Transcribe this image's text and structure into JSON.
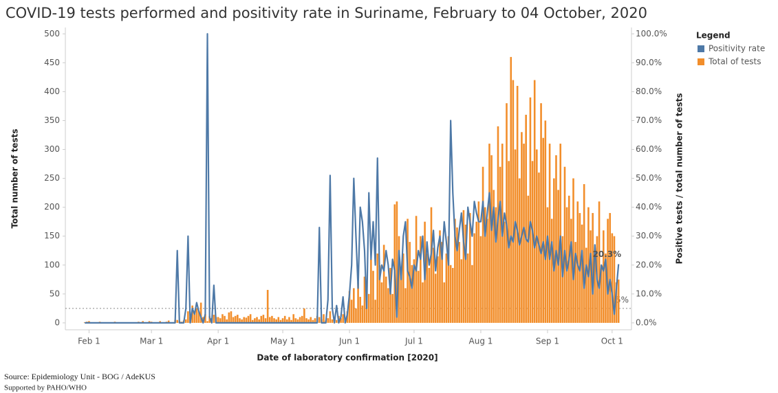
{
  "chart_data": {
    "type": "bar_line",
    "title": "COVID-19 tests performed and positivity rate in Suriname, February to 04 October, 2020",
    "x_label": "Date of laboratory confirmation [2020]",
    "y_label": "Total number of tests",
    "y2_label": "Positive tests / total number of tests",
    "legend_title": "Legend",
    "legend": "right",
    "source": [
      "Source: Epidemiology Unit - BOG / AdeKUS",
      "Supported by PAHO/WHO"
    ],
    "x": [
      "2020-01-30",
      "2020-01-31",
      "2020-02-01",
      "2020-02-02",
      "2020-02-03",
      "2020-02-04",
      "2020-02-05",
      "2020-02-06",
      "2020-02-07",
      "2020-02-08",
      "2020-02-09",
      "2020-02-10",
      "2020-02-11",
      "2020-02-12",
      "2020-02-13",
      "2020-02-14",
      "2020-02-15",
      "2020-02-16",
      "2020-02-17",
      "2020-02-18",
      "2020-02-19",
      "2020-02-20",
      "2020-02-21",
      "2020-02-22",
      "2020-02-23",
      "2020-02-24",
      "2020-02-25",
      "2020-02-26",
      "2020-02-27",
      "2020-02-28",
      "2020-02-29",
      "2020-03-01",
      "2020-03-02",
      "2020-03-03",
      "2020-03-04",
      "2020-03-05",
      "2020-03-06",
      "2020-03-07",
      "2020-03-08",
      "2020-03-09",
      "2020-03-10",
      "2020-03-11",
      "2020-03-12",
      "2020-03-13",
      "2020-03-14",
      "2020-03-15",
      "2020-03-16",
      "2020-03-17",
      "2020-03-18",
      "2020-03-19",
      "2020-03-20",
      "2020-03-21",
      "2020-03-22",
      "2020-03-23",
      "2020-03-24",
      "2020-03-25",
      "2020-03-26",
      "2020-03-27",
      "2020-03-28",
      "2020-03-29",
      "2020-03-30",
      "2020-03-31",
      "2020-04-01",
      "2020-04-02",
      "2020-04-03",
      "2020-04-04",
      "2020-04-05",
      "2020-04-06",
      "2020-04-07",
      "2020-04-08",
      "2020-04-09",
      "2020-04-10",
      "2020-04-11",
      "2020-04-12",
      "2020-04-13",
      "2020-04-14",
      "2020-04-15",
      "2020-04-16",
      "2020-04-17",
      "2020-04-18",
      "2020-04-19",
      "2020-04-20",
      "2020-04-21",
      "2020-04-22",
      "2020-04-23",
      "2020-04-24",
      "2020-04-25",
      "2020-04-26",
      "2020-04-27",
      "2020-04-28",
      "2020-04-29",
      "2020-04-30",
      "2020-05-01",
      "2020-05-02",
      "2020-05-03",
      "2020-05-04",
      "2020-05-05",
      "2020-05-06",
      "2020-05-07",
      "2020-05-08",
      "2020-05-09",
      "2020-05-10",
      "2020-05-11",
      "2020-05-12",
      "2020-05-13",
      "2020-05-14",
      "2020-05-15",
      "2020-05-16",
      "2020-05-17",
      "2020-05-18",
      "2020-05-19",
      "2020-05-20",
      "2020-05-21",
      "2020-05-22",
      "2020-05-23",
      "2020-05-24",
      "2020-05-25",
      "2020-05-26",
      "2020-05-27",
      "2020-05-28",
      "2020-05-29",
      "2020-05-30",
      "2020-05-31",
      "2020-06-01",
      "2020-06-02",
      "2020-06-03",
      "2020-06-04",
      "2020-06-05",
      "2020-06-06",
      "2020-06-07",
      "2020-06-08",
      "2020-06-09",
      "2020-06-10",
      "2020-06-11",
      "2020-06-12",
      "2020-06-13",
      "2020-06-14",
      "2020-06-15",
      "2020-06-16",
      "2020-06-17",
      "2020-06-18",
      "2020-06-19",
      "2020-06-20",
      "2020-06-21",
      "2020-06-22",
      "2020-06-23",
      "2020-06-24",
      "2020-06-25",
      "2020-06-26",
      "2020-06-27",
      "2020-06-28",
      "2020-06-29",
      "2020-06-30",
      "2020-07-01",
      "2020-07-02",
      "2020-07-03",
      "2020-07-04",
      "2020-07-05",
      "2020-07-06",
      "2020-07-07",
      "2020-07-08",
      "2020-07-09",
      "2020-07-10",
      "2020-07-11",
      "2020-07-12",
      "2020-07-13",
      "2020-07-14",
      "2020-07-15",
      "2020-07-16",
      "2020-07-17",
      "2020-07-18",
      "2020-07-19",
      "2020-07-20",
      "2020-07-21",
      "2020-07-22",
      "2020-07-23",
      "2020-07-24",
      "2020-07-25",
      "2020-07-26",
      "2020-07-27",
      "2020-07-28",
      "2020-07-29",
      "2020-07-30",
      "2020-07-31",
      "2020-08-01",
      "2020-08-02",
      "2020-08-03",
      "2020-08-04",
      "2020-08-05",
      "2020-08-06",
      "2020-08-07",
      "2020-08-08",
      "2020-08-09",
      "2020-08-10",
      "2020-08-11",
      "2020-08-12",
      "2020-08-13",
      "2020-08-14",
      "2020-08-15",
      "2020-08-16",
      "2020-08-17",
      "2020-08-18",
      "2020-08-19",
      "2020-08-20",
      "2020-08-21",
      "2020-08-22",
      "2020-08-23",
      "2020-08-24",
      "2020-08-25",
      "2020-08-26",
      "2020-08-27",
      "2020-08-28",
      "2020-08-29",
      "2020-08-30",
      "2020-08-31",
      "2020-09-01",
      "2020-09-02",
      "2020-09-03",
      "2020-09-04",
      "2020-09-05",
      "2020-09-06",
      "2020-09-07",
      "2020-09-08",
      "2020-09-09",
      "2020-09-10",
      "2020-09-11",
      "2020-09-12",
      "2020-09-13",
      "2020-09-14",
      "2020-09-15",
      "2020-09-16",
      "2020-09-17",
      "2020-09-18",
      "2020-09-19",
      "2020-09-20",
      "2020-09-21",
      "2020-09-22",
      "2020-09-23",
      "2020-09-24",
      "2020-09-25",
      "2020-09-26",
      "2020-09-27",
      "2020-09-28",
      "2020-09-29",
      "2020-09-30",
      "2020-10-01",
      "2020-10-02",
      "2020-10-03",
      "2020-10-04"
    ],
    "series": [
      {
        "name": "Positivity rate",
        "color": "#4e79a7",
        "axis": "y2",
        "kind": "line",
        "values": [
          0,
          0,
          0,
          0,
          0,
          0,
          0,
          0,
          0,
          0,
          0,
          0,
          0,
          0,
          0,
          0,
          0,
          0,
          0,
          0,
          0,
          0,
          0,
          0,
          0,
          0,
          0,
          0,
          0,
          0,
          0,
          0,
          0,
          0,
          0,
          0,
          0,
          0,
          0,
          0,
          0,
          0,
          0,
          25,
          0,
          0,
          0,
          5,
          30,
          0,
          5,
          3,
          7,
          4,
          2,
          0,
          3,
          100,
          2,
          0,
          13,
          0,
          0,
          0,
          0,
          0,
          0,
          0,
          0,
          0,
          0,
          0,
          0,
          0,
          0,
          0,
          0,
          0,
          0,
          0,
          0,
          0,
          0,
          0,
          0,
          0,
          0,
          0,
          0,
          0,
          0,
          0,
          0,
          0,
          0,
          0,
          0,
          0,
          0,
          0,
          0,
          0,
          0,
          0,
          0,
          0,
          0,
          0,
          0,
          33,
          0,
          0,
          0,
          8,
          51,
          5,
          0,
          6,
          0,
          2,
          9,
          0,
          3,
          10,
          20,
          50,
          30,
          12,
          40,
          35,
          25,
          5,
          45,
          22,
          35,
          20,
          57,
          15,
          20,
          18,
          25,
          20,
          10,
          22,
          18,
          2,
          25,
          15,
          30,
          35,
          18,
          16,
          12,
          20,
          18,
          25,
          22,
          30,
          15,
          28,
          20,
          24,
          32,
          18,
          26,
          30,
          22,
          35,
          28,
          20,
          70,
          45,
          30,
          25,
          32,
          38,
          28,
          22,
          40,
          35,
          30,
          42,
          38,
          35,
          35,
          42,
          30,
          38,
          45,
          32,
          40,
          28,
          36,
          42,
          30,
          38,
          34,
          26,
          30,
          28,
          35,
          32,
          27,
          30,
          33,
          29,
          28,
          35,
          32,
          26,
          30,
          27,
          24,
          28,
          22,
          30,
          22,
          28,
          18,
          25,
          20,
          30,
          16,
          25,
          18,
          22,
          28,
          15,
          24,
          20,
          18,
          25,
          12,
          20,
          16,
          24,
          10,
          27,
          15,
          12,
          20,
          18,
          22,
          10,
          15,
          10,
          3,
          12,
          20.3
        ]
      },
      {
        "name": "Total of tests",
        "color": "#f28e2b",
        "axis": "y",
        "kind": "bar",
        "values": [
          1,
          2,
          3,
          1,
          0,
          1,
          0,
          2,
          1,
          0,
          1,
          0,
          1,
          0,
          2,
          1,
          0,
          1,
          0,
          1,
          0,
          1,
          0,
          1,
          0,
          2,
          1,
          3,
          1,
          0,
          3,
          2,
          0,
          1,
          0,
          3,
          1,
          0,
          2,
          4,
          1,
          0,
          5,
          5,
          3,
          2,
          4,
          6,
          20,
          10,
          30,
          15,
          25,
          20,
          35,
          10,
          15,
          3,
          12,
          8,
          14,
          10,
          10,
          8,
          15,
          12,
          6,
          18,
          20,
          10,
          12,
          14,
          8,
          6,
          10,
          9,
          12,
          15,
          5,
          8,
          10,
          6,
          12,
          14,
          8,
          57,
          10,
          12,
          8,
          6,
          10,
          5,
          8,
          12,
          6,
          10,
          5,
          15,
          8,
          6,
          10,
          12,
          25,
          8,
          6,
          10,
          5,
          8,
          12,
          10,
          6,
          15,
          4,
          8,
          20,
          6,
          10,
          5,
          12,
          8,
          15,
          6,
          20,
          55,
          40,
          60,
          25,
          70,
          45,
          30,
          80,
          60,
          50,
          110,
          90,
          40,
          120,
          100,
          70,
          135,
          80,
          60,
          95,
          50,
          205,
          210,
          150,
          80,
          120,
          60,
          180,
          140,
          100,
          110,
          185,
          90,
          150,
          70,
          175,
          120,
          95,
          200,
          130,
          85,
          115,
          160,
          140,
          70,
          120,
          150,
          100,
          95,
          180,
          165,
          140,
          110,
          195,
          170,
          120,
          190,
          100,
          155,
          175,
          210,
          150,
          270,
          200,
          180,
          310,
          290,
          230,
          200,
          340,
          270,
          310,
          175,
          380,
          280,
          460,
          420,
          300,
          410,
          250,
          330,
          310,
          360,
          220,
          390,
          280,
          420,
          300,
          260,
          380,
          320,
          350,
          200,
          310,
          180,
          250,
          290,
          230,
          310,
          150,
          270,
          200,
          220,
          180,
          250,
          140,
          210,
          190,
          170,
          240,
          130,
          200,
          160,
          190,
          130,
          150,
          210,
          100,
          160,
          120,
          180,
          190,
          155,
          150,
          70,
          75
        ]
      }
    ],
    "xlim": [
      "2020-01-21",
      "2020-10-10"
    ],
    "xticks": [
      {
        "value": "2020-02-01",
        "label": "Feb 1"
      },
      {
        "value": "2020-03-01",
        "label": "Mar 1"
      },
      {
        "value": "2020-04-01",
        "label": "Apr 1"
      },
      {
        "value": "2020-05-01",
        "label": "May 1"
      },
      {
        "value": "2020-06-01",
        "label": "Jun 1"
      },
      {
        "value": "2020-07-01",
        "label": "Jul 1"
      },
      {
        "value": "2020-08-01",
        "label": "Aug 1"
      },
      {
        "value": "2020-09-01",
        "label": "Sep 1"
      },
      {
        "value": "2020-10-01",
        "label": "Oct 1"
      }
    ],
    "ylim": [
      -12,
      511
    ],
    "yticks": [
      0,
      50,
      100,
      150,
      200,
      250,
      300,
      350,
      400,
      450,
      500
    ],
    "y2lim": [
      -2.4,
      102.2
    ],
    "y2ticks": [
      {
        "value": 0,
        "label": "0.0%"
      },
      {
        "value": 10,
        "label": "10.0%"
      },
      {
        "value": 20,
        "label": "20.0%"
      },
      {
        "value": 30,
        "label": "30.0%"
      },
      {
        "value": 40,
        "label": "40.0%"
      },
      {
        "value": 50,
        "label": "50.0%"
      },
      {
        "value": 60,
        "label": "60.0%"
      },
      {
        "value": 70,
        "label": "70.0%"
      },
      {
        "value": 80,
        "label": "80.0%"
      },
      {
        "value": 90,
        "label": "90.0%"
      },
      {
        "value": 100,
        "label": "100.0%"
      }
    ],
    "reference_line": {
      "value": 5,
      "label": "5%",
      "axis": "y2"
    },
    "annotations": [
      {
        "x": "2020-10-04",
        "y": 20.3,
        "text": "20.3%",
        "axis": "y2"
      }
    ]
  }
}
